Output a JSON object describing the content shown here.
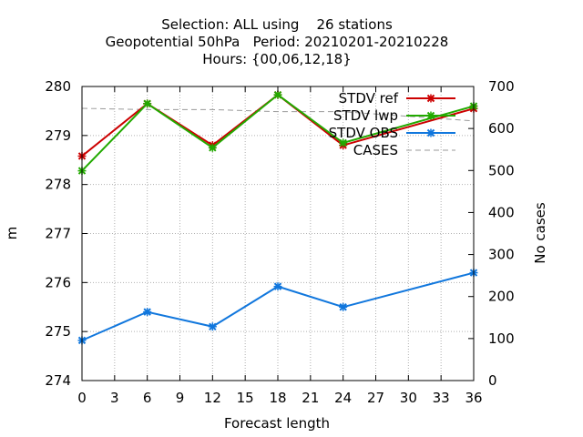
{
  "chart_data": {
    "type": "line",
    "title_lines": [
      "Selection: ALL using    26 stations",
      "Geopotential 50hPa   Period: 20210201-20210228",
      "Hours: {00,06,12,18}"
    ],
    "xlabel": "Forecast length",
    "ylabel": "m",
    "y2label": "No cases",
    "xlim": [
      0,
      36
    ],
    "ylim": [
      274,
      280
    ],
    "y2lim": [
      0,
      700
    ],
    "x_ticks": [
      0,
      3,
      6,
      9,
      12,
      15,
      18,
      21,
      24,
      27,
      30,
      33,
      36
    ],
    "y_ticks": [
      274,
      275,
      276,
      277,
      278,
      279,
      280
    ],
    "y2_ticks": [
      0,
      100,
      200,
      300,
      400,
      500,
      600,
      700
    ],
    "grid": true,
    "legend_position": "top-right",
    "x": [
      0,
      6,
      12,
      18,
      24,
      36
    ],
    "series": [
      {
        "name": "STDV ref",
        "axis": "y",
        "color": "#cc0000",
        "marker": "x",
        "dashed": false,
        "values": [
          278.58,
          279.65,
          278.8,
          279.83,
          278.8,
          279.55
        ]
      },
      {
        "name": "STDV lwp",
        "axis": "y",
        "color": "#22aa00",
        "marker": "x",
        "dashed": false,
        "values": [
          278.28,
          279.65,
          278.75,
          279.83,
          278.85,
          279.6
        ]
      },
      {
        "name": "STDV OBS",
        "axis": "y",
        "color": "#1177dd",
        "marker": "x",
        "dashed": false,
        "values": [
          274.82,
          275.4,
          275.1,
          275.92,
          275.5,
          276.2
        ]
      },
      {
        "name": "CASES",
        "axis": "y2",
        "color": "#999999",
        "marker": "none",
        "dashed": true,
        "values": [
          648,
          645,
          645,
          640,
          640,
          618
        ]
      }
    ]
  }
}
